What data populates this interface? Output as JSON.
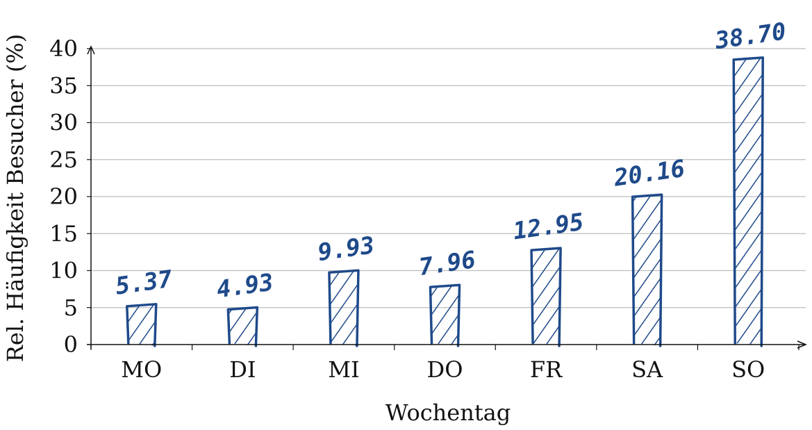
{
  "chart_data": {
    "type": "bar",
    "categories": [
      "MO",
      "DI",
      "MI",
      "DO",
      "FR",
      "SA",
      "SO"
    ],
    "values": [
      5.37,
      4.93,
      9.93,
      7.96,
      12.95,
      20.16,
      38.7
    ],
    "value_labels": [
      "5.37",
      "4.93",
      "9.93",
      "7.96",
      "12.95",
      "20.16",
      "38.70"
    ],
    "xlabel": "Wochentag",
    "ylabel": "Rel. Häufigkeit Besucher (%)",
    "ylim": [
      0,
      40
    ],
    "yticks": [
      "0",
      "5",
      "10",
      "15",
      "20",
      "25",
      "30",
      "35",
      "40"
    ],
    "grid": "horizontal",
    "bar_style": "hand-drawn hatched",
    "colors": {
      "bar": "#1f4a8a",
      "grid": "#bdbdbd",
      "axis": "#111111"
    }
  }
}
